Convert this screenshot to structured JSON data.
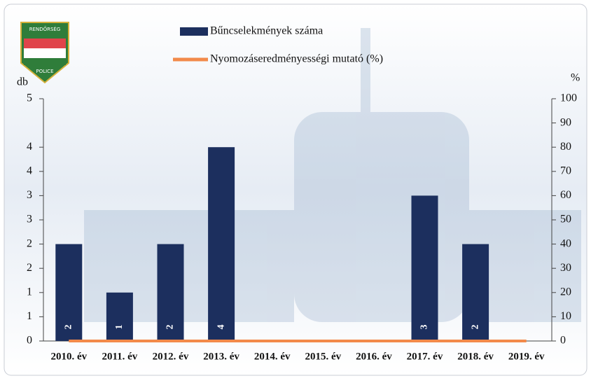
{
  "chart_data": {
    "type": "bar",
    "logo": {
      "top": "RENDŐRSÉG",
      "bottom": "POLICE"
    },
    "ylabel": "db",
    "y2label": "%",
    "categories": [
      "2010. év",
      "2011. év",
      "2012. év",
      "2013. év",
      "2014. év",
      "2015. év",
      "2016. év",
      "2017. év",
      "2018. év",
      "2019. év"
    ],
    "series": [
      {
        "name": "Bűncselekmények száma",
        "type": "bar",
        "color": "#1c2f5e",
        "values": [
          2,
          1,
          2,
          4,
          null,
          null,
          null,
          3,
          2,
          null
        ]
      },
      {
        "name": "Nyomozáseredményességi mutató (%)",
        "type": "line",
        "axis": "y2",
        "color": "#f28a4a",
        "values": [
          0,
          0,
          0,
          0,
          0,
          0,
          0,
          0,
          0,
          0
        ]
      }
    ],
    "ylim": [
      0,
      5
    ],
    "yticks": [
      0,
      {
        "value": 0.5,
        "label": "1"
      },
      1,
      {
        "value": 1.5,
        "label": "2"
      },
      2,
      {
        "value": 2.5,
        "label": "3"
      },
      3,
      {
        "value": 3.5,
        "label": "4"
      },
      4,
      5
    ],
    "y2lim": [
      0,
      100
    ],
    "y2ticks": [
      0,
      10,
      20,
      30,
      40,
      50,
      60,
      70,
      80,
      90,
      100
    ]
  }
}
